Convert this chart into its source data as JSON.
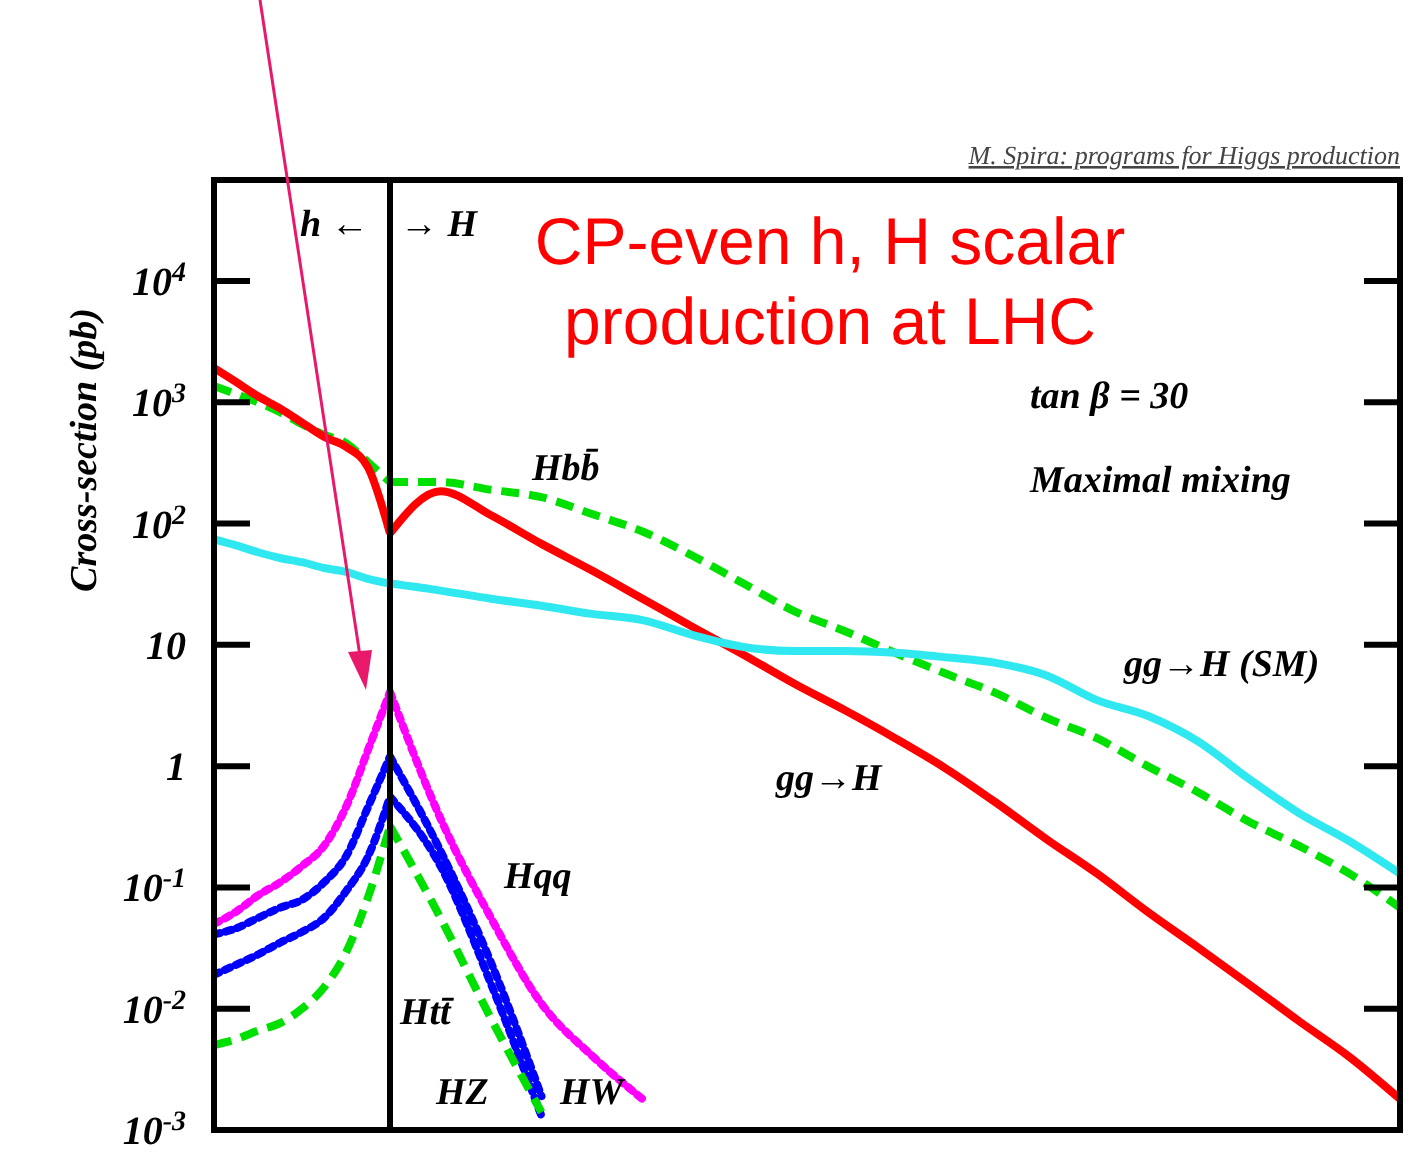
{
  "chart_data": [
    {
      "type": "line",
      "ylabel": "Cross-section (pb)",
      "log": true,
      "tick_labels": "y",
      "categories": [
        null,
        null,
        null,
        null,
        null,
        null,
        null,
        null,
        null
      ],
      "ylim": [
        0.001,
        68000
      ],
      "yticks": [
        {
          "value": 10000,
          "label": "10$^{4}$"
        },
        {
          "value": 1000,
          "label": "10$^{3}$"
        },
        {
          "value": 100,
          "label": "10$^{2}$"
        },
        10,
        1,
        {
          "value": 0.1,
          "label": "10$^{-1}$"
        },
        {
          "value": 0.01,
          "label": "10$^{-2}$"
        },
        {
          "value": 0.001,
          "label": "10$^{-3}$"
        }
      ],
      "annotations": [
        "h ←"
      ],
      "series": [
        {
          "color": "#00e000",
          "line_style": "dashed",
          "values": [
            1360,
            1170,
            1000,
            830,
            660,
            540,
            460,
            320,
            220
          ]
        },
        {
          "color": "#ff0000",
          "line_style": "solid",
          "values": [
            1920,
            1470,
            1120,
            890,
            680,
            520,
            430,
            290,
            83
          ]
        },
        {
          "color": "#30e8f0",
          "line_style": "solid",
          "values": [
            74,
            66,
            58,
            52,
            48,
            43,
            40,
            35,
            32
          ]
        },
        {
          "color": "#ff00ff",
          "line_style": "dotted",
          "values": [
            0.05,
            0.063,
            0.086,
            0.11,
            0.15,
            0.22,
            0.46,
            1.36,
            4.1
          ]
        },
        {
          "color": "#0000ff",
          "line_style": "dotted",
          "values": [
            0.041,
            0.046,
            0.056,
            0.068,
            0.079,
            0.11,
            0.18,
            0.46,
            1.2
          ]
        },
        {
          "color": "#0000ff",
          "line_style": "dotted",
          "values": [
            0.019,
            0.023,
            0.028,
            0.035,
            0.043,
            0.056,
            0.093,
            0.18,
            0.56
          ]
        },
        {
          "color": "#00e000",
          "line_style": "dashed",
          "values": [
            0.005,
            0.0056,
            0.0066,
            0.0076,
            0.01,
            0.015,
            0.029,
            0.083,
            0.32
          ]
        }
      ]
    },
    {
      "type": "line",
      "title": "CP-even h, H scalar production at LHC",
      "log": true,
      "tick_labels": false,
      "categories": [
        null,
        null,
        null,
        null,
        null,
        null,
        null,
        null,
        null,
        null,
        null,
        null,
        null,
        null,
        null,
        null,
        null,
        null,
        null,
        null,
        null
      ],
      "ylim": [
        0.001,
        68000
      ],
      "yticks": [
        {
          "value": 10000,
          "label": null
        },
        {
          "value": 1000,
          "label": null
        },
        {
          "value": 100,
          "label": null
        },
        {
          "value": 10,
          "label": null
        },
        {
          "value": 1,
          "label": null
        },
        {
          "value": 0.1,
          "label": null
        },
        {
          "value": 0.01,
          "label": null
        },
        {
          "value": 0.001,
          "label": null
        }
      ],
      "annotations": [
        "M. Spira: programs for Higgs production",
        "→ H",
        "tan β = 30",
        "Maximal mixing",
        "Hbb̄",
        "gg→H (SM)",
        "gg→H",
        "Hqq",
        "Htt̄",
        "HZ",
        "HW"
      ],
      "series": [
        {
          "color": "#00e000",
          "line_style": "dashed",
          "values": [
            220,
            220,
            190,
            165,
            120,
            86,
            54,
            32,
            19,
            13,
            8.6,
            5.8,
            4.0,
            2.5,
            1.7,
            1.0,
            0.61,
            0.35,
            0.22,
            0.13,
            0.068
          ]
        },
        {
          "color": "#ff0000",
          "line_style": "solid",
          "values": [
            83,
            185,
            117,
            68,
            41,
            24,
            14,
            8.3,
            4.8,
            2.9,
            1.7,
            0.96,
            0.5,
            0.25,
            0.13,
            0.063,
            0.032,
            0.016,
            0.0079,
            0.004,
            0.0018
          ]
        },
        {
          "color": "#30e8f0",
          "line_style": "solid",
          "values": [
            32,
            28,
            24,
            21,
            18,
            16,
            12,
            9.6,
            8.9,
            8.9,
            8.6,
            7.9,
            7.1,
            5.6,
            3.5,
            2.6,
            1.6,
            0.79,
            0.41,
            0.24,
            0.13
          ]
        },
        {
          "color": "#ff00ff",
          "line_style": "dotted",
          "values": [
            4.1,
            0.37,
            0.056,
            0.011,
            0.0041,
            0.0018,
            null,
            null,
            null,
            null,
            null,
            null,
            null,
            null,
            null,
            null,
            null,
            null,
            null,
            null,
            null
          ]
        },
        {
          "color": "#0000ff",
          "line_style": "dotted",
          "values": [
            1.2,
            0.2,
            0.024,
            0.0019,
            null,
            null,
            null,
            null,
            null,
            null,
            null,
            null,
            null,
            null,
            null,
            null,
            null,
            null,
            null,
            null,
            null
          ]
        },
        {
          "color": "#0000ff",
          "line_style": "dotted",
          "values": [
            0.56,
            0.15,
            0.016,
            0.0013,
            null,
            null,
            null,
            null,
            null,
            null,
            null,
            null,
            null,
            null,
            null,
            null,
            null,
            null,
            null,
            null,
            null
          ]
        },
        {
          "color": "#00e000",
          "line_style": "dashed",
          "values": [
            0.32,
            0.056,
            0.0083,
            0.0014,
            null,
            null,
            null,
            null,
            null,
            null,
            null,
            null,
            null,
            null,
            null,
            null,
            null,
            null,
            null,
            null,
            null
          ]
        }
      ]
    }
  ]
}
